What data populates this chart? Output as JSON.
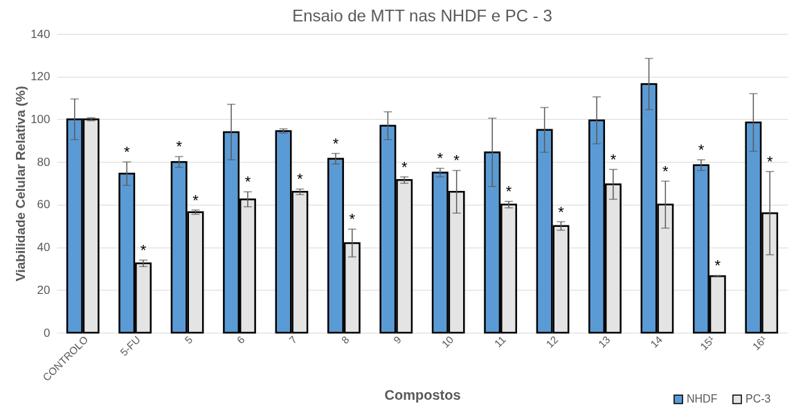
{
  "chart_data": {
    "type": "bar",
    "title": "Ensaio de MTT nas NHDF e PC - 3",
    "xlabel": "Compostos",
    "ylabel": "Viabilidade Celular Relativa (%)",
    "categories": [
      "CONTROLO",
      "5-FU",
      "5",
      "6",
      "7",
      "8",
      "9",
      "10",
      "11",
      "12",
      "13",
      "14",
      "15¹",
      "16¹"
    ],
    "series": [
      {
        "name": "NHDF",
        "color": "#5b9bd5",
        "values": [
          100,
          74.5,
          80,
          94,
          94.5,
          81.5,
          97,
          75,
          84.5,
          95,
          99.5,
          116.5,
          78.5,
          98.5
        ],
        "errors": [
          9.5,
          5.5,
          2.5,
          13,
          1,
          2.5,
          6.5,
          2,
          16,
          10.5,
          11,
          12,
          2.5,
          13.5
        ]
      },
      {
        "name": "PC-3",
        "color": "#e4e4e4",
        "values": [
          100,
          32.5,
          56.5,
          62.5,
          66,
          42,
          71.5,
          66,
          60,
          50,
          69.5,
          60,
          26.5,
          56
        ],
        "errors": [
          0.7,
          1.5,
          1,
          3.5,
          1.3,
          6.5,
          1.5,
          10,
          1.5,
          2,
          7,
          11,
          0.3,
          19.5
        ]
      }
    ],
    "ylim": [
      0,
      140
    ],
    "yticks": [
      0,
      20,
      40,
      60,
      80,
      100,
      120,
      140
    ],
    "grid": "y",
    "legend": "bottom right",
    "annotations": [
      {
        "text": "*",
        "x": "5-FU",
        "y": 74.5
      },
      {
        "text": "*",
        "x": "5-FU",
        "y": 32.5
      },
      {
        "text": "*",
        "x": "5",
        "y": 80
      },
      {
        "text": "*",
        "x": "5",
        "y": 56.5
      },
      {
        "text": "*",
        "x": "6",
        "y": 62.5
      },
      {
        "text": "*",
        "x": "7",
        "y": 66
      },
      {
        "text": "*",
        "x": "8",
        "y": 81.5
      },
      {
        "text": "*",
        "x": "8",
        "y": 42
      },
      {
        "text": "*",
        "x": "9",
        "y": 71.5
      },
      {
        "text": "*",
        "x": "10",
        "y": 75
      },
      {
        "text": "*",
        "x": "10",
        "y": 66
      },
      {
        "text": "*",
        "x": "11",
        "y": 60
      },
      {
        "text": "*",
        "x": "12",
        "y": 50
      },
      {
        "text": "*",
        "x": "13",
        "y": 69.5
      },
      {
        "text": "*",
        "x": "14",
        "y": 60
      },
      {
        "text": "*",
        "x": "15¹",
        "y": 78.5
      },
      {
        "text": "*",
        "x": "15¹",
        "y": 26.5
      },
      {
        "text": "*",
        "x": "16¹",
        "y": 56
      }
    ]
  }
}
